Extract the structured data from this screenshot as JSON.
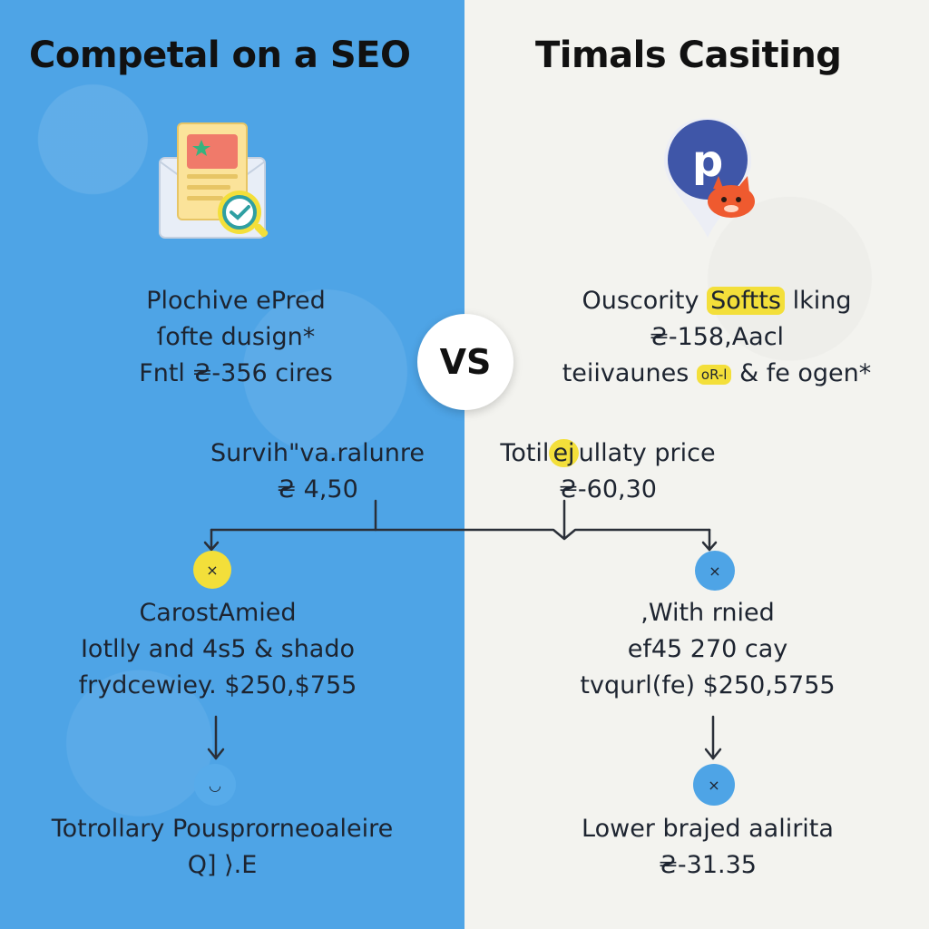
{
  "left": {
    "title": "Competal on a SEO",
    "block1": [
      "Plochive ePred",
      "ſofte dusign*",
      "Fntl ₴-356 cires"
    ],
    "block2": [
      "Survih\"va.ralunre",
      "₴ 4,50"
    ],
    "block3": [
      "CarostAmied",
      "Iotlly and 4s5 & shado",
      "frydcewiey. $250,$755"
    ],
    "block4": [
      "Totrollary Pousprorneoaleire",
      "Q] ⟩.E"
    ],
    "dot1_glyph": "×",
    "dot2_glyph": "◡"
  },
  "right": {
    "title": "Timals Casiting",
    "block1_line1_pre": "Ouscority ",
    "block1_line1_highlight": "Softts",
    "block1_line1_post": " lking",
    "block1_line2": "₴-158,Aacl",
    "block1_line3_pre": "teiivaunes ",
    "block1_line3_highlight": "oR-l",
    "block1_line3_post": " & fe ogen*",
    "block2_line1_pre": "Totil",
    "block2_line1_highlight": "ej",
    "block2_line1_post": "ullaty price",
    "block2_line2": "₴-60,30",
    "block3": [
      ",With rnied",
      "ef45 270 cay",
      "tvqurl(fe) $250,5755"
    ],
    "block4": [
      "Lower brajed aalirita",
      "₴-31.35"
    ],
    "dot1_glyph": "×",
    "dot2_glyph": "×"
  },
  "vs_label": "VS",
  "logo_letter": "p",
  "colors": {
    "left_bg": "#4ea4e6",
    "right_bg": "#f3f3ef",
    "highlight": "#f3df3a",
    "logo_blue": "#3f56a8"
  },
  "icons": [
    "seo-document-icon",
    "magnifier-icon",
    "location-pin-icon",
    "fox-icon"
  ]
}
